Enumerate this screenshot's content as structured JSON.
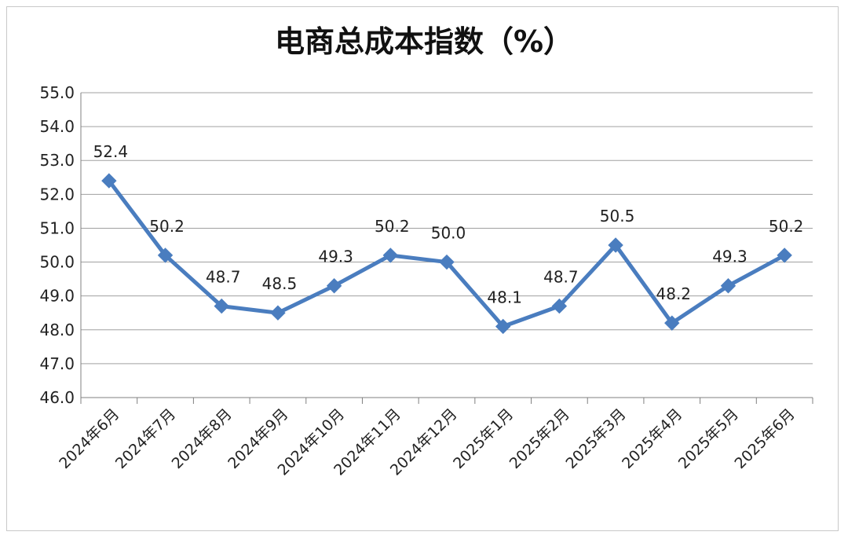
{
  "chart_data": {
    "type": "line",
    "title": "电商总成本指数（%）",
    "xlabel": "",
    "ylabel": "",
    "categories": [
      "2024年6月",
      "2024年7月",
      "2024年8月",
      "2024年9月",
      "2024年10月",
      "2024年11月",
      "2024年12月",
      "2025年1月",
      "2025年2月",
      "2025年3月",
      "2025年4月",
      "2025年5月",
      "2025年6月"
    ],
    "series": [
      {
        "values": [
          52.4,
          50.2,
          48.7,
          48.5,
          49.3,
          50.2,
          50.0,
          48.1,
          48.7,
          50.5,
          48.2,
          49.3,
          50.2
        ]
      }
    ],
    "data_labels": [
      "52.4",
      "50.2",
      "48.7",
      "48.5",
      "49.3",
      "50.2",
      "50.0",
      "48.1",
      "48.7",
      "50.5",
      "48.2",
      "49.3",
      "50.2"
    ],
    "ylim": [
      46.0,
      55.0
    ],
    "ytick_labels": [
      "46.0",
      "47.0",
      "48.0",
      "49.0",
      "50.0",
      "51.0",
      "52.0",
      "53.0",
      "54.0",
      "55.0"
    ],
    "grid": true,
    "legend": "none",
    "colors": {
      "line": "#4a7dbf",
      "grid": "#a0a0a0",
      "axis": "#808080"
    }
  }
}
